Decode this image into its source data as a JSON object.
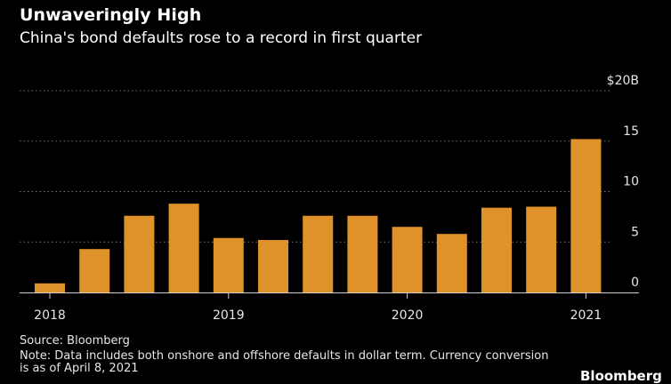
{
  "chart_data": {
    "type": "bar",
    "title": "Unwaveringly High",
    "subtitle": "China's bond defaults rose to a record in first quarter",
    "xlabel": "",
    "ylabel": "",
    "y_unit_prefix": "$",
    "y_unit_suffix": "B",
    "ylim": [
      0,
      20
    ],
    "y_ticks": [
      0,
      5,
      10,
      15,
      20
    ],
    "y_tick_labels": [
      "0",
      "5",
      "10",
      "15",
      "$20B"
    ],
    "x_tick_labels": [
      "2018",
      "2019",
      "2020",
      "2021"
    ],
    "categories": [
      "2018 Q1",
      "2018 Q2",
      "2018 Q3",
      "2018 Q4",
      "2019 Q1",
      "2019 Q2",
      "2019 Q3",
      "2019 Q4",
      "2020 Q1",
      "2020 Q2",
      "2020 Q3",
      "2020 Q4",
      "2021 Q1"
    ],
    "values": [
      0.9,
      4.3,
      7.6,
      8.8,
      5.4,
      5.2,
      7.6,
      7.6,
      6.5,
      5.8,
      8.4,
      8.5,
      15.2
    ],
    "grid": true,
    "colors": {
      "bar": "#e0922a",
      "grid": "#777777",
      "background": "#000000"
    },
    "source": "Source: Bloomberg",
    "note": "Note: Data includes both onshore and offshore defaults in dollar term. Currency conversion is as of April 8, 2021"
  },
  "brand": "Bloomberg"
}
